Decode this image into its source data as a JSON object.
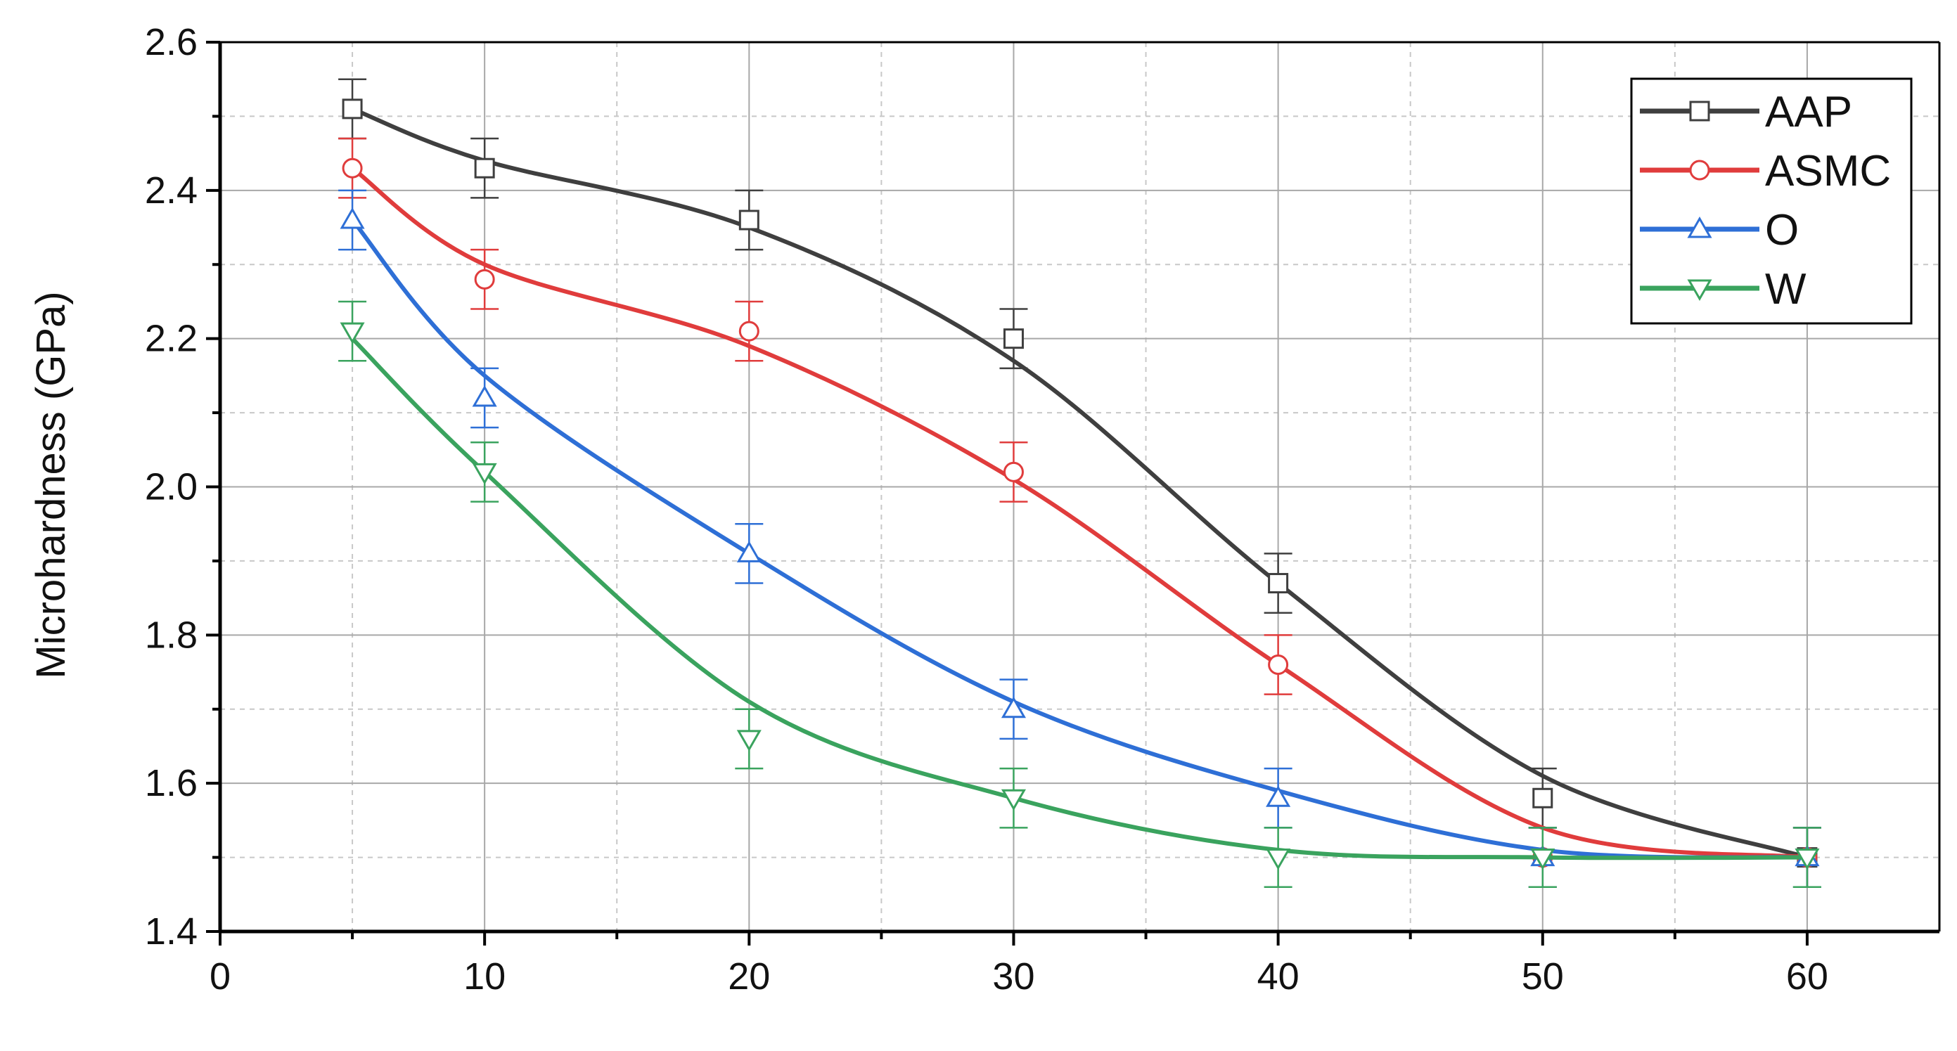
{
  "chart_data": {
    "type": "line",
    "title": "",
    "xlabel": "",
    "ylabel": "Microhardness (GPa)",
    "xlim": [
      0,
      65
    ],
    "ylim": [
      1.4,
      2.6
    ],
    "x_ticks": [
      0,
      10,
      20,
      30,
      40,
      50,
      60
    ],
    "x_tick_labels": [
      "0",
      "10",
      "20",
      "30",
      "40",
      "50",
      "60"
    ],
    "y_ticks": [
      1.4,
      1.6,
      1.8,
      2.0,
      2.2,
      2.4,
      2.6
    ],
    "y_tick_labels": [
      "1.4",
      "1.6",
      "1.8",
      "2.0",
      "2.2",
      "2.4",
      "2.6"
    ],
    "grid": true,
    "legend_position": "top-right",
    "x": [
      5,
      10,
      20,
      30,
      40,
      50,
      60
    ],
    "series": [
      {
        "name": "AAP",
        "color": "#3f3f3f",
        "marker": "square",
        "values": [
          2.51,
          2.43,
          2.36,
          2.2,
          1.87,
          1.58,
          1.5
        ],
        "errors": [
          0.04,
          0.04,
          0.04,
          0.04,
          0.04,
          0.04,
          0.04
        ],
        "fit": [
          2.51,
          2.44,
          2.35,
          2.17,
          1.87,
          1.61,
          1.5
        ]
      },
      {
        "name": "ASMC",
        "color": "#e03c3c",
        "marker": "circle",
        "values": [
          2.43,
          2.28,
          2.21,
          2.02,
          1.76,
          1.5,
          1.5
        ],
        "errors": [
          0.04,
          0.04,
          0.04,
          0.04,
          0.04,
          0.04,
          0.04
        ],
        "fit": [
          2.43,
          2.3,
          2.19,
          2.01,
          1.76,
          1.54,
          1.5
        ]
      },
      {
        "name": "O",
        "color": "#2e6fd6",
        "marker": "triangle-up",
        "values": [
          2.36,
          2.12,
          1.91,
          1.7,
          1.58,
          1.5,
          1.5
        ],
        "errors": [
          0.04,
          0.04,
          0.04,
          0.04,
          0.04,
          0.04,
          0.04
        ],
        "fit": [
          2.36,
          2.15,
          1.91,
          1.71,
          1.59,
          1.51,
          1.5
        ]
      },
      {
        "name": "W",
        "color": "#3aa35e",
        "marker": "triangle-down",
        "values": [
          2.21,
          2.02,
          1.66,
          1.58,
          1.5,
          1.5,
          1.5
        ],
        "errors": [
          0.04,
          0.04,
          0.04,
          0.04,
          0.04,
          0.04,
          0.04
        ],
        "fit": [
          2.2,
          2.02,
          1.71,
          1.58,
          1.51,
          1.5,
          1.5
        ]
      }
    ]
  }
}
